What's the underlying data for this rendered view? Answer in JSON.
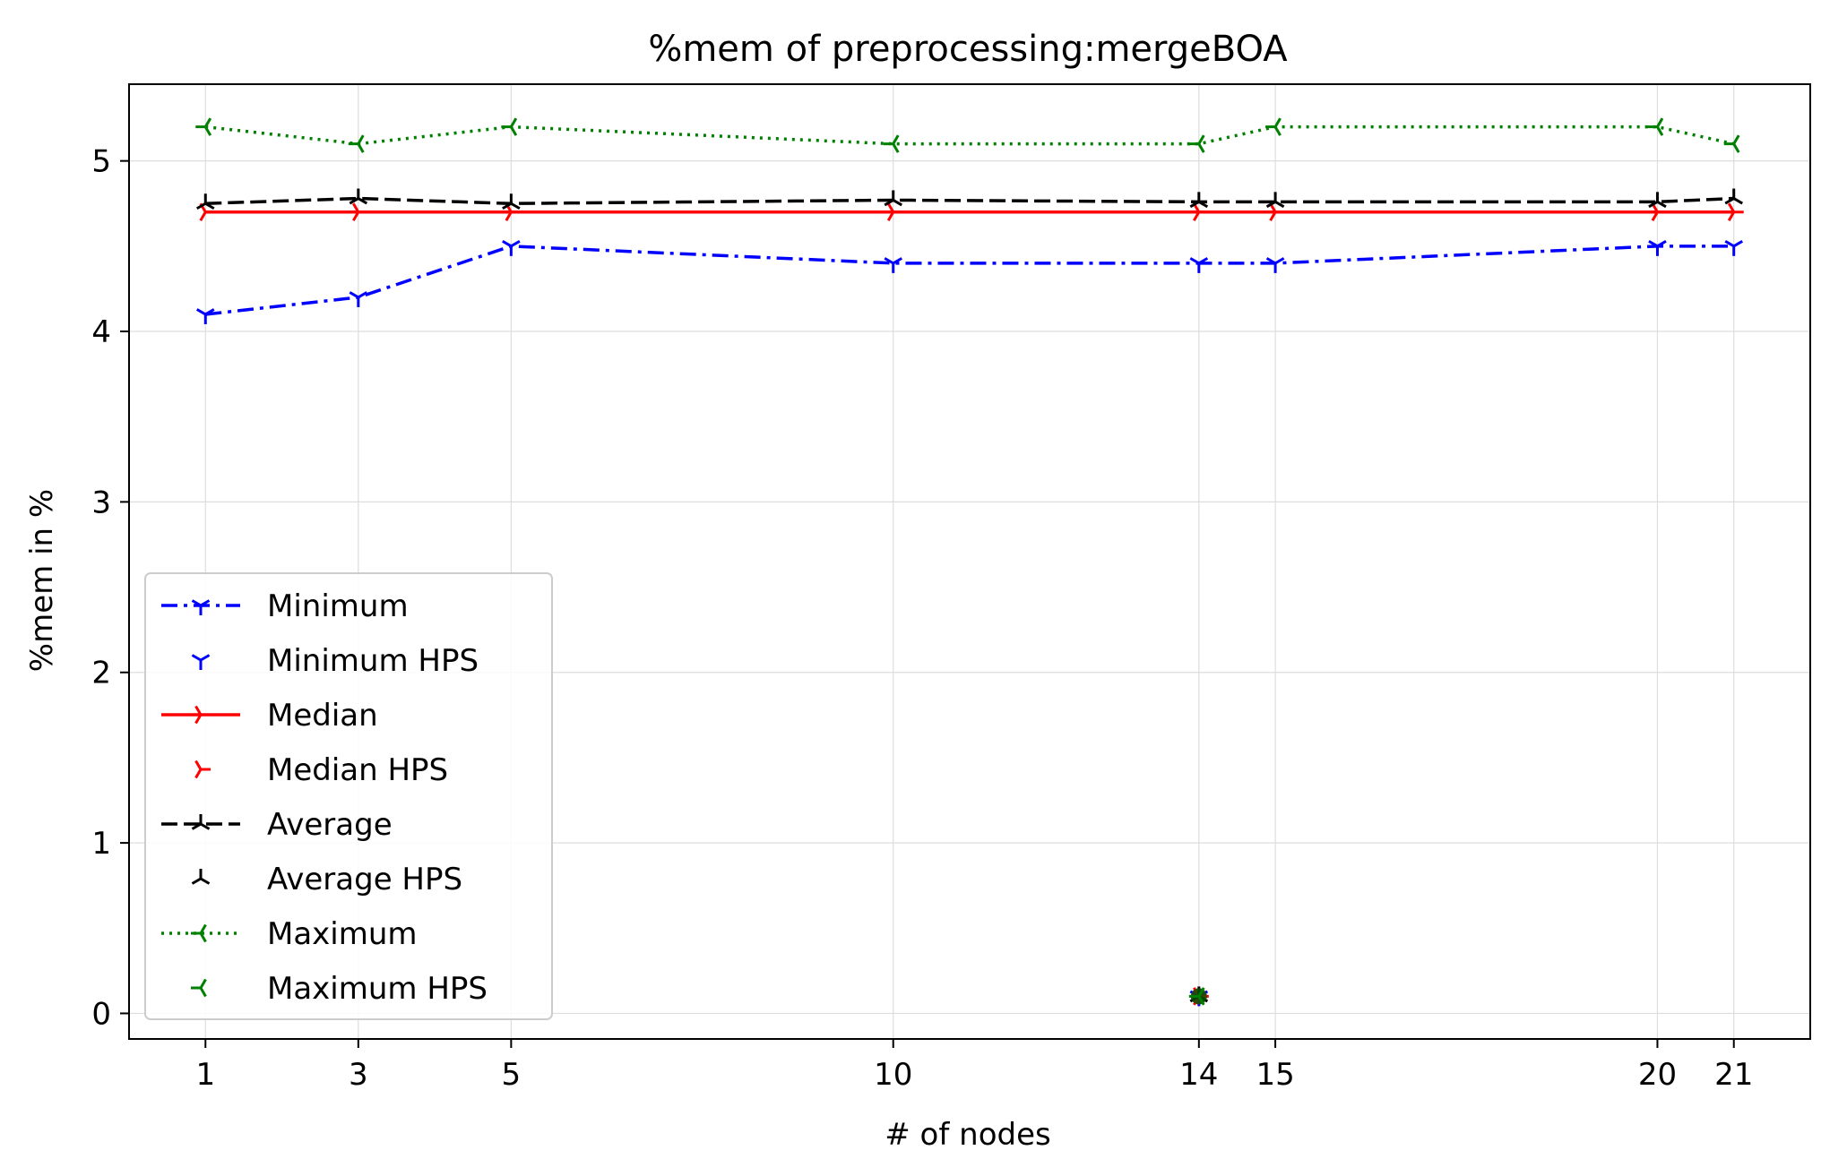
{
  "chart_data": {
    "type": "line",
    "title": "%mem of preprocessing:mergeBOA",
    "xlabel": "# of nodes",
    "ylabel": "%mem in %",
    "x_ticks": [
      1,
      3,
      5,
      10,
      14,
      15,
      20,
      21
    ],
    "y_ticks": [
      0,
      1,
      2,
      3,
      4,
      5
    ],
    "xlim": [
      0,
      22
    ],
    "ylim": [
      -0.15,
      5.45
    ],
    "grid": true,
    "legend_position": "lower-left",
    "series": [
      {
        "name": "Minimum",
        "color": "#0000ff",
        "style": "dashdot",
        "marker": "tri_down",
        "x": [
          1,
          3,
          5,
          10,
          14,
          15,
          20,
          21
        ],
        "y": [
          4.1,
          4.2,
          4.5,
          4.4,
          4.4,
          4.4,
          4.5,
          4.5
        ]
      },
      {
        "name": "Median",
        "color": "#ff0000",
        "style": "solid",
        "marker": "tri_right",
        "x": [
          1,
          3,
          5,
          10,
          14,
          15,
          20,
          21
        ],
        "y": [
          4.7,
          4.7,
          4.7,
          4.7,
          4.7,
          4.7,
          4.7,
          4.7
        ]
      },
      {
        "name": "Average",
        "color": "#000000",
        "style": "dashed",
        "marker": "tri_up",
        "x": [
          1,
          3,
          5,
          10,
          14,
          15,
          20,
          21
        ],
        "y": [
          4.75,
          4.78,
          4.75,
          4.77,
          4.76,
          4.76,
          4.76,
          4.78
        ]
      },
      {
        "name": "Maximum",
        "color": "#008000",
        "style": "dotted",
        "marker": "tri_left",
        "x": [
          1,
          3,
          5,
          10,
          14,
          15,
          20,
          21
        ],
        "y": [
          5.2,
          5.1,
          5.2,
          5.1,
          5.1,
          5.2,
          5.2,
          5.1
        ]
      }
    ],
    "hps_series": [
      {
        "name": "Minimum HPS",
        "color": "#0000ff",
        "marker": "tri_down",
        "x": [
          14
        ],
        "y": [
          0.1
        ]
      },
      {
        "name": "Median HPS",
        "color": "#ff0000",
        "marker": "tri_right",
        "x": [
          14
        ],
        "y": [
          0.1
        ]
      },
      {
        "name": "Average HPS",
        "color": "#000000",
        "marker": "tri_up",
        "x": [
          14
        ],
        "y": [
          0.1
        ]
      },
      {
        "name": "Maximum HPS",
        "color": "#008000",
        "marker": "tri_left",
        "x": [
          14
        ],
        "y": [
          0.1
        ]
      }
    ],
    "legend": [
      "Minimum",
      "Minimum HPS",
      "Median",
      "Median HPS",
      "Average",
      "Average HPS",
      "Maximum",
      "Maximum HPS"
    ]
  }
}
